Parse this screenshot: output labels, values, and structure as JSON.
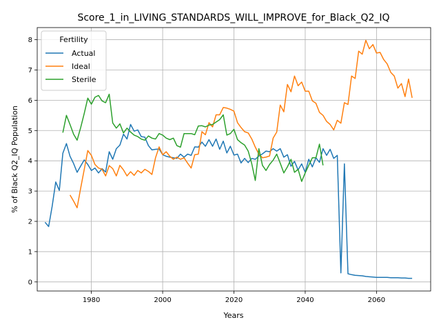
{
  "chart_data": {
    "type": "line",
    "title": "Score_1_in_LIVING_STANDARDS_WILL_IMPROVE_for_Black_Q2_IQ",
    "xlabel": "Years",
    "ylabel": "% of Black Q2_IQ Population",
    "xlim": [
      1964.8,
      2075.2
    ],
    "ylim": [
      -0.3,
      8.4
    ],
    "xticks": [
      1980,
      2000,
      2020,
      2040,
      2060
    ],
    "yticks": [
      0,
      1,
      2,
      3,
      4,
      5,
      6,
      7,
      8
    ],
    "grid": true,
    "legend": {
      "title": "Fertility",
      "placement": "top-left"
    },
    "colors": {
      "Actual": "#1f77b4",
      "Ideal": "#ff7f0e",
      "Sterile": "#2ca02c"
    },
    "series": [
      {
        "name": "Actual",
        "x": [
          1967,
          1968,
          1969,
          1970,
          1971,
          1972,
          1973,
          1974,
          1975,
          1976,
          1977,
          1978,
          1979,
          1980,
          1981,
          1982,
          1983,
          1984,
          1985,
          1986,
          1987,
          1988,
          1989,
          1990,
          1991,
          1992,
          1993,
          1994,
          1995,
          1996,
          1997,
          1998,
          1999,
          2000,
          2001,
          2002,
          2003,
          2004,
          2005,
          2006,
          2007,
          2008,
          2009,
          2010,
          2011,
          2012,
          2013,
          2014,
          2015,
          2016,
          2017,
          2018,
          2019,
          2020,
          2021,
          2022,
          2023,
          2024,
          2025,
          2026,
          2027,
          2028,
          2029,
          2030,
          2031,
          2032,
          2033,
          2034,
          2035,
          2036,
          2037,
          2038,
          2039,
          2040,
          2041,
          2042,
          2043,
          2044,
          2045,
          2046,
          2047,
          2048,
          2049,
          2050,
          2051,
          2052,
          2053,
          2054,
          2055,
          2056,
          2057,
          2058,
          2059,
          2060,
          2061,
          2062,
          2063,
          2064,
          2065,
          2066,
          2067,
          2068,
          2069,
          2070
        ],
        "values": [
          1.97,
          1.83,
          2.5,
          3.3,
          3.02,
          4.25,
          4.57,
          4.15,
          3.91,
          3.62,
          3.83,
          4.03,
          3.88,
          3.68,
          3.76,
          3.6,
          3.74,
          3.63,
          4.3,
          4.05,
          4.4,
          4.52,
          4.88,
          4.72,
          5.2,
          4.98,
          5.02,
          4.8,
          4.78,
          4.5,
          4.36,
          4.38,
          4.39,
          4.2,
          4.15,
          4.12,
          4.1,
          4.08,
          4.22,
          4.12,
          4.22,
          4.18,
          4.46,
          4.45,
          4.62,
          4.48,
          4.7,
          4.48,
          4.72,
          4.38,
          4.65,
          4.26,
          4.48,
          4.19,
          4.22,
          3.93,
          4.08,
          3.94,
          4.08,
          4.05,
          4.16,
          4.23,
          4.32,
          4.3,
          4.4,
          4.32,
          4.4,
          4.12,
          4.2,
          3.82,
          3.98,
          3.7,
          3.9,
          3.62,
          4.05,
          3.8,
          4.1,
          3.95,
          4.4,
          4.18,
          4.38,
          4.08,
          4.18,
          0.3,
          3.9,
          0.27,
          0.24,
          0.22,
          0.21,
          0.2,
          0.18,
          0.17,
          0.16,
          0.15,
          0.15,
          0.15,
          0.15,
          0.14,
          0.14,
          0.14,
          0.13,
          0.13,
          0.12,
          0.12
        ],
        "note": ""
      },
      {
        "name": "Ideal",
        "x": [
          1974,
          1975,
          1976,
          1977,
          1978,
          1979,
          1980,
          1981,
          1982,
          1983,
          1984,
          1985,
          1986,
          1987,
          1988,
          1989,
          1990,
          1991,
          1992,
          1993,
          1994,
          1995,
          1996,
          1997,
          1998,
          1999,
          2000,
          2001,
          2002,
          2003,
          2004,
          2005,
          2006,
          2007,
          2008,
          2009,
          2010,
          2011,
          2012,
          2013,
          2014,
          2015,
          2016,
          2017,
          2018,
          2019,
          2020,
          2021,
          2022,
          2023,
          2024,
          2025,
          2026,
          2027,
          2028,
          2029,
          2030,
          2031,
          2032,
          2033,
          2034,
          2035,
          2036,
          2037,
          2038,
          2039,
          2040,
          2041,
          2042,
          2043,
          2044,
          2045,
          2046,
          2047,
          2048,
          2049,
          2050,
          2051,
          2052,
          2053,
          2054,
          2055,
          2056,
          2057,
          2058,
          2059,
          2060,
          2061,
          2062,
          2063,
          2064,
          2065,
          2066,
          2067,
          2068,
          2069,
          2070
        ],
        "values": [
          2.87,
          2.67,
          2.45,
          3.1,
          3.72,
          4.34,
          4.18,
          3.88,
          3.76,
          3.72,
          3.5,
          3.84,
          3.74,
          3.5,
          3.85,
          3.7,
          3.5,
          3.64,
          3.52,
          3.68,
          3.6,
          3.72,
          3.65,
          3.55,
          4.1,
          4.46,
          4.2,
          4.3,
          4.15,
          4.05,
          4.12,
          4.05,
          4.1,
          3.92,
          3.76,
          4.2,
          4.22,
          4.96,
          4.86,
          5.26,
          5.12,
          5.52,
          5.52,
          5.76,
          5.74,
          5.7,
          5.64,
          5.26,
          5.1,
          4.96,
          4.92,
          4.72,
          4.45,
          4.22,
          4.1,
          4.12,
          4.16,
          4.75,
          4.95,
          5.84,
          5.62,
          6.52,
          6.28,
          6.8,
          6.48,
          6.6,
          6.3,
          6.3,
          5.98,
          5.9,
          5.6,
          5.5,
          5.3,
          5.2,
          5.02,
          5.34,
          5.24,
          5.92,
          5.86,
          6.8,
          6.72,
          7.62,
          7.52,
          7.98,
          7.7,
          7.84,
          7.56,
          7.58,
          7.35,
          7.2,
          6.92,
          6.8,
          6.4,
          6.55,
          6.12,
          6.7,
          6.08
        ]
      },
      {
        "name": "Sterile",
        "x": [
          1972,
          1973,
          1974,
          1975,
          1976,
          1977,
          1978,
          1979,
          1980,
          1981,
          1982,
          1983,
          1984,
          1985,
          1986,
          1987,
          1988,
          1989,
          1990,
          1991,
          1992,
          1993,
          1994,
          1995,
          1996,
          1997,
          1998,
          1999,
          2000,
          2001,
          2002,
          2003,
          2004,
          2005,
          2006,
          2007,
          2008,
          2009,
          2010,
          2011,
          2012,
          2013,
          2014,
          2015,
          2016,
          2017,
          2018,
          2019,
          2020,
          2021,
          2022,
          2023,
          2024,
          2025,
          2026,
          2027,
          2028,
          2029,
          2030,
          2031,
          2032,
          2033,
          2034,
          2035,
          2036,
          2037,
          2038,
          2039,
          2040,
          2041,
          2042,
          2043,
          2044,
          2045
        ],
        "values": [
          4.93,
          5.5,
          5.2,
          4.88,
          4.68,
          5.1,
          5.57,
          6.07,
          5.87,
          6.1,
          6.16,
          5.98,
          5.92,
          6.2,
          5.25,
          5.08,
          5.22,
          4.92,
          5.08,
          4.95,
          4.85,
          4.8,
          4.72,
          4.68,
          4.82,
          4.75,
          4.72,
          4.9,
          4.85,
          4.75,
          4.7,
          4.75,
          4.5,
          4.45,
          4.9,
          4.9,
          4.9,
          4.86,
          5.15,
          5.16,
          5.12,
          5.18,
          5.2,
          5.28,
          5.36,
          5.52,
          4.85,
          4.9,
          5.04,
          4.7,
          4.6,
          4.52,
          4.32,
          3.9,
          3.35,
          4.4,
          3.85,
          3.68,
          3.88,
          4.02,
          4.22,
          3.92,
          3.6,
          3.8,
          4.05,
          3.62,
          3.72,
          3.32,
          3.6,
          3.85,
          4.1,
          4.1,
          4.55,
          3.85
        ]
      }
    ]
  }
}
